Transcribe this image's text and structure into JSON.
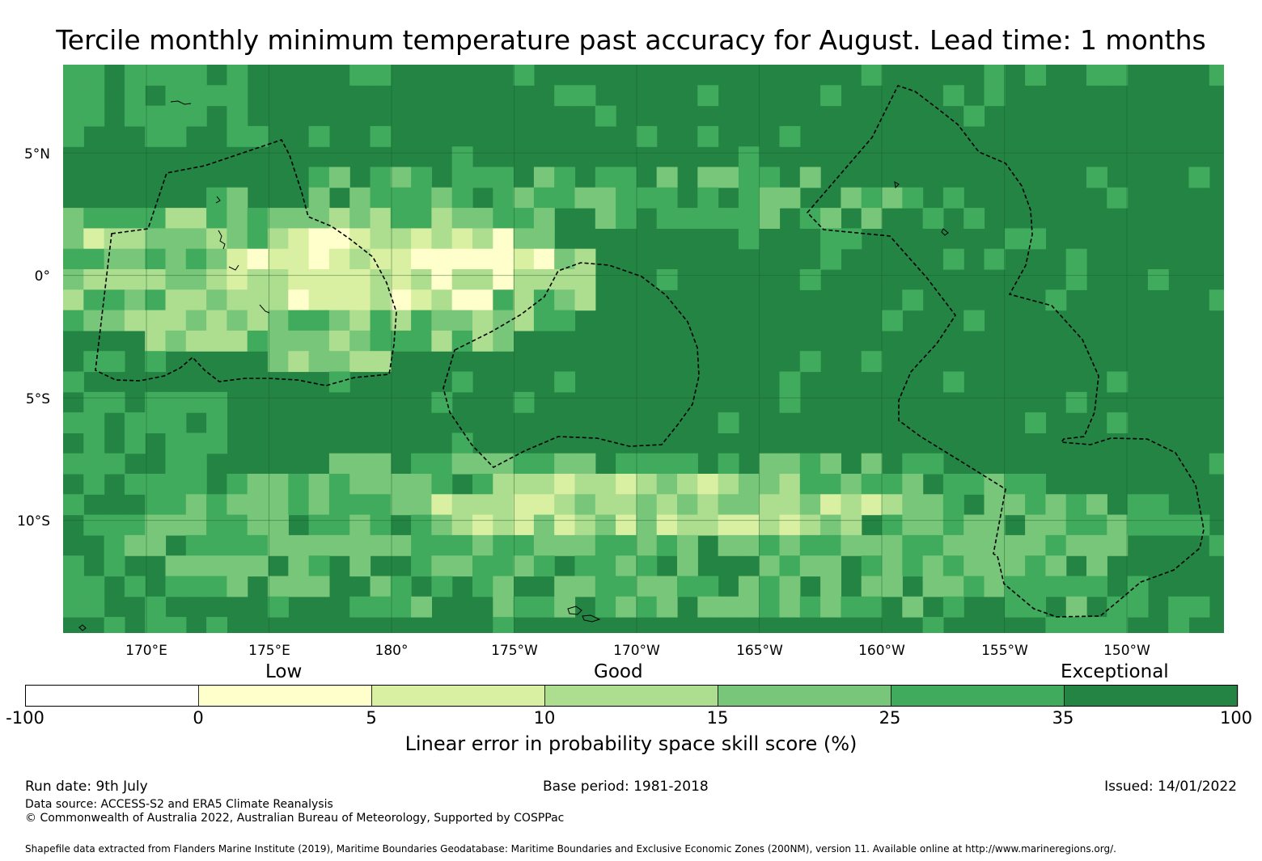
{
  "title": "Tercile monthly minimum temperature past accuracy for August. Lead time: 1 months",
  "map": {
    "lat_labels": [
      "5°N",
      "0°",
      "5°S",
      "10°S"
    ],
    "lon_labels": [
      "170°E",
      "175°E",
      "180°",
      "175°W",
      "170°W",
      "165°W",
      "160°W",
      "155°W",
      "150°W"
    ],
    "extent": {
      "lon_min": 166.6,
      "lon_max": 213.9,
      "lat_min": -14.6,
      "lat_max": 8.6
    },
    "gridlines": true,
    "default_class": 6,
    "grid_cell_deg": 0.8,
    "cell_classes_description": "0=<0, 1=0-5, 2=5-10, 3=10-15, 4=15-25, 5=25-35, 6=35-100"
  },
  "legend": {
    "category_labels": [
      "Low",
      "Good",
      "Exceptional"
    ],
    "tick_labels": [
      "-100",
      "0",
      "5",
      "10",
      "15",
      "25",
      "35",
      "100"
    ],
    "colors": [
      "#ffffff",
      "#ffffcc",
      "#d9f0a3",
      "#addd8e",
      "#78c679",
      "#41ab5d",
      "#238443"
    ],
    "title": "Linear error in probability space skill score (%)"
  },
  "footer": {
    "run_date": "Run date: 9th July",
    "base_period": "Base period: 1981-2018",
    "issued": "Issued: 14/01/2022",
    "data_source": "Data source: ACCESS-S2 and ERA5 Climate Reanalysis",
    "copyright": "© Commonwealth of Australia 2022, Australian Bureau of Meteorology, Supported by COSPPac",
    "shapefile": "Shapefile data extracted from Flanders Marine Institute (2019), Maritime Boundaries Geodatabase: Maritime Boundaries and Exclusive Economic Zones (200NM), version 11. Available online at http://www.marineregions.org/."
  }
}
